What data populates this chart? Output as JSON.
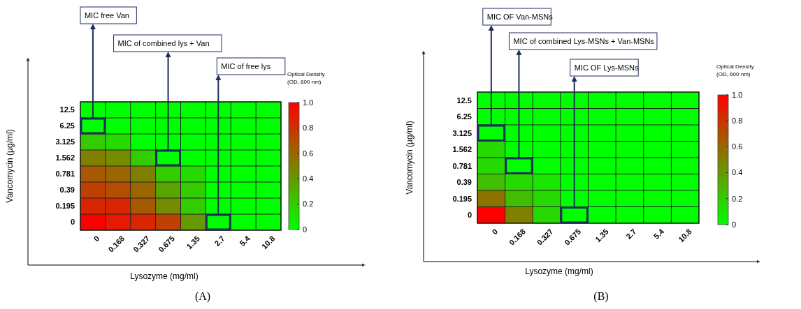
{
  "chart_data": [
    {
      "type": "heatmap",
      "grid": true,
      "title": "(A)",
      "xlabel": "Lysozyme (mg/ml)",
      "ylabel": "Vancomycin (µg/ml)",
      "clabel": "Optical Density (OD, 600 nm)",
      "categories": [
        "0",
        "0.168",
        "0.327",
        "0.675",
        "1.35",
        "2.7",
        "5.4",
        "10.8"
      ],
      "y_categories": [
        "12.5",
        "6.25",
        "3.125",
        "1.562",
        "0.781",
        "0.39",
        "0.195",
        "0"
      ],
      "cells": [
        [
          0,
          0,
          0,
          0,
          0,
          0,
          0,
          0
        ],
        [
          0,
          0,
          0,
          0,
          0,
          0,
          0,
          0
        ],
        [
          0.2,
          0.15,
          0,
          0,
          0,
          0,
          0,
          0
        ],
        [
          0.5,
          0.45,
          0.2,
          0,
          0,
          0,
          0,
          0
        ],
        [
          0.65,
          0.6,
          0.5,
          0.2,
          0.15,
          0,
          0,
          0
        ],
        [
          0.75,
          0.7,
          0.6,
          0.35,
          0.2,
          0,
          0,
          0
        ],
        [
          0.85,
          0.85,
          0.65,
          0.45,
          0.2,
          0,
          0,
          0
        ],
        [
          1,
          0.9,
          0.85,
          0.75,
          0.4,
          0,
          0,
          0
        ]
      ],
      "clim": [
        0,
        1
      ],
      "cticks": [
        0,
        0.2,
        0.4,
        0.6,
        0.8,
        {
          "value": 1,
          "label": "1.0"
        }
      ],
      "annotations": [
        "MIC free Van",
        "MIC of combined lys + Van",
        "MIC of free lys"
      ]
    },
    {
      "type": "heatmap",
      "grid": true,
      "title": "(B)",
      "xlabel": "Lysozyme (mg/ml)",
      "ylabel": "Vancomycin (µg/ml)",
      "clabel": "Optical Density (OD, 600 nm)",
      "categories": [
        "0",
        "0.168",
        "0.327",
        "0.675",
        "1.35",
        "2.7",
        "5.4",
        "10.8"
      ],
      "y_categories": [
        "12.5",
        "6.25",
        "3.125",
        "1.562",
        "0.781",
        "0.39",
        "0.195",
        "0"
      ],
      "cells": [
        [
          0,
          0,
          0,
          0,
          0,
          0,
          0,
          0
        ],
        [
          0,
          0,
          0,
          0,
          0,
          0,
          0,
          0
        ],
        [
          0,
          0,
          0,
          0,
          0,
          0,
          0,
          0
        ],
        [
          0.15,
          0,
          0,
          0,
          0,
          0,
          0,
          0
        ],
        [
          0.15,
          0,
          0,
          0,
          0,
          0,
          0,
          0
        ],
        [
          0.25,
          0.15,
          0.1,
          0,
          0,
          0,
          0,
          0
        ],
        [
          0.55,
          0.25,
          0.15,
          0,
          0,
          0,
          0,
          0
        ],
        [
          1,
          0.5,
          0.15,
          0,
          0,
          0,
          0,
          0
        ]
      ],
      "clim": [
        0,
        1
      ],
      "cticks": [
        0,
        0.2,
        0.4,
        0.6,
        0.8,
        {
          "value": 1,
          "label": "1.0"
        }
      ],
      "annotations": [
        "MIC OF Van-MSNs",
        "MIC of combined Lys-MSNs + Van-MSNs",
        "MIC OF Lys-MSNs"
      ]
    }
  ]
}
